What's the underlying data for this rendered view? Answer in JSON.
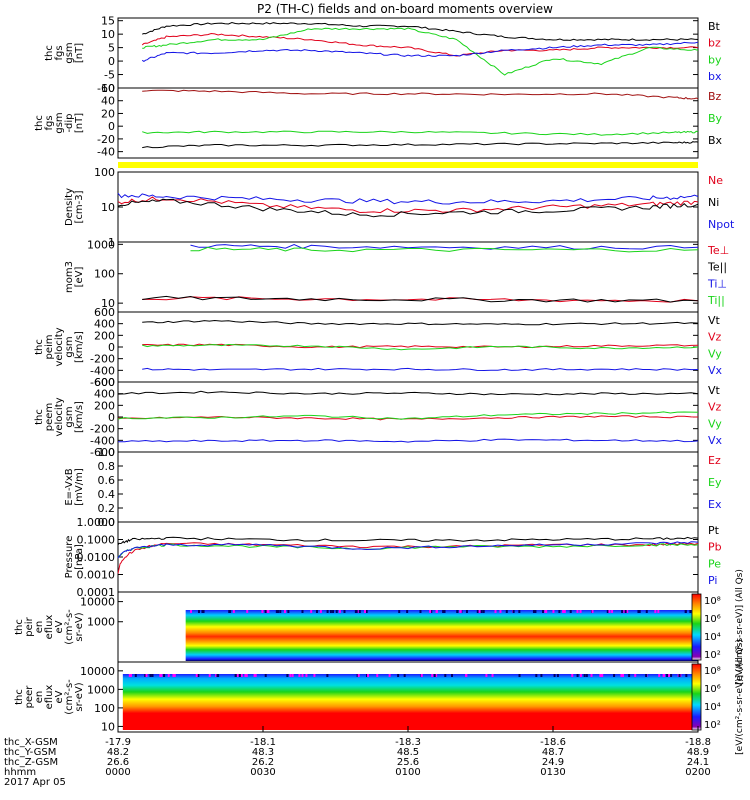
{
  "title": "P2 (TH-C) fields and on-board moments overview",
  "colors": {
    "black": "#000000",
    "red": "#e0001a",
    "green": "#19d419",
    "blue": "#1414e6",
    "yellow": "#ffff00",
    "brown": "#a01010"
  },
  "xaxis": {
    "time_ticks": [
      "0000",
      "0030",
      "0100",
      "0130",
      "0200"
    ],
    "time_values_min": [
      0,
      30,
      60,
      90,
      120
    ],
    "time_range_min": [
      0,
      120
    ],
    "row_labels": [
      "thc_X-GSM",
      "thc_Y-GSM",
      "thc_Z-GSM",
      "hhmm",
      "2017 Apr 05"
    ],
    "rows": [
      [
        "-17.9",
        "-18.1",
        "-18.3",
        "-18.6",
        "-18.8"
      ],
      [
        "48.2",
        "48.3",
        "48.5",
        "48.7",
        "48.9"
      ],
      [
        "26.6",
        "26.2",
        "25.6",
        "24.9",
        "24.1"
      ]
    ]
  },
  "panels": [
    {
      "ylabel": [
        "thc",
        "fgs",
        "gsm",
        "[nT]"
      ],
      "ticks": [
        "15",
        "10",
        "5",
        "0",
        "-5",
        "-10"
      ],
      "tick_values": [
        15,
        10,
        5,
        0,
        -5,
        -10
      ],
      "legend": [
        {
          "text": "Bt",
          "color": "#000000"
        },
        {
          "text": "bz",
          "color": "#e0001a"
        },
        {
          "text": "by",
          "color": "#19d419"
        },
        {
          "text": "bx",
          "color": "#1414e6"
        }
      ]
    },
    {
      "ylabel": [
        "thc",
        "fgs",
        "gsm",
        "-dip",
        "[nT]"
      ],
      "ticks": [
        "60",
        "40",
        "20",
        "0",
        "-20",
        "-40"
      ],
      "tick_values": [
        60,
        40,
        20,
        0,
        -20,
        -40
      ],
      "legend": [
        {
          "text": "Bz",
          "color": "#a01010"
        },
        {
          "text": "By",
          "color": "#19d419"
        },
        {
          "text": "Bx",
          "color": "#000000"
        }
      ]
    },
    {
      "ylabel": [
        "Density",
        "[cm-3]"
      ],
      "ticks": [
        "100",
        "10",
        "1"
      ],
      "tick_values": [
        100,
        10,
        1
      ],
      "legend": [
        {
          "text": "Ne",
          "color": "#e0001a"
        },
        {
          "text": "Ni",
          "color": "#000000"
        },
        {
          "text": "Npot",
          "color": "#1414e6"
        }
      ]
    },
    {
      "ylabel": [
        "mom3",
        "[eV]"
      ],
      "ticks": [
        "1000",
        "100",
        "10"
      ],
      "tick_values": [
        1000,
        100,
        10
      ],
      "legend": [
        {
          "text": "Te⊥",
          "color": "#e0001a"
        },
        {
          "text": "Te||",
          "color": "#000000"
        },
        {
          "text": "Ti⊥",
          "color": "#1414e6"
        },
        {
          "text": "Ti||",
          "color": "#19d419"
        }
      ]
    },
    {
      "ylabel": [
        "thc",
        "peim",
        "velocity",
        "gsm",
        "[km/s]"
      ],
      "ticks": [
        "600",
        "400",
        "200",
        "0",
        "-200",
        "-400",
        "-600"
      ],
      "tick_values": [
        600,
        400,
        200,
        0,
        -200,
        -400,
        -600
      ],
      "legend": [
        {
          "text": "Vt",
          "color": "#000000"
        },
        {
          "text": "Vz",
          "color": "#e0001a"
        },
        {
          "text": "Vy",
          "color": "#19d419"
        },
        {
          "text": "Vx",
          "color": "#1414e6"
        }
      ]
    },
    {
      "ylabel": [
        "thc",
        "peem",
        "velocity",
        "gsm",
        "[km/s]"
      ],
      "ticks": [
        "600",
        "400",
        "200",
        "0",
        "-200",
        "-400",
        "-600"
      ],
      "tick_values": [
        600,
        400,
        200,
        0,
        -200,
        -400,
        -600
      ],
      "legend": [
        {
          "text": "Vt",
          "color": "#000000"
        },
        {
          "text": "Vz",
          "color": "#e0001a"
        },
        {
          "text": "Vy",
          "color": "#19d419"
        },
        {
          "text": "Vx",
          "color": "#1414e6"
        }
      ]
    },
    {
      "ylabel": [
        "E=-VxB",
        "[mV/m]"
      ],
      "ticks": [
        "1.0",
        "0.8",
        "0.6",
        "0.4",
        "0.2",
        "0.0"
      ],
      "tick_values": [
        1.0,
        0.8,
        0.6,
        0.4,
        0.2,
        0.0
      ],
      "legend": [
        {
          "text": "Ez",
          "color": "#e0001a"
        },
        {
          "text": "Ey",
          "color": "#19d419"
        },
        {
          "text": "Ex",
          "color": "#1414e6"
        }
      ]
    },
    {
      "ylabel": [
        "Pressure",
        "[nPa]"
      ],
      "ticks": [
        "1.0000",
        "0.1000",
        "0.0100",
        "0.0010",
        "0.0001"
      ],
      "tick_values": [
        1.0,
        0.1,
        0.01,
        0.001,
        0.0001
      ],
      "legend": [
        {
          "text": "Pt",
          "color": "#000000"
        },
        {
          "text": "Pb",
          "color": "#e0001a"
        },
        {
          "text": "Pe",
          "color": "#19d419"
        },
        {
          "text": "Pi",
          "color": "#1414e6"
        }
      ]
    },
    {
      "ylabel": [
        "thc",
        "peir",
        "en",
        "eflux",
        "eV",
        "(cm²-s-",
        "sr-eV)"
      ],
      "ticks": [
        "10000",
        "1000"
      ],
      "tick_values": [
        10000,
        1000
      ],
      "colorbar": {
        "ticks": [
          "10⁸",
          "10⁶",
          "10⁴",
          "10²"
        ],
        "label": "[eV/(cm²-s-sr-eV)] (All Qs)"
      }
    },
    {
      "ylabel": [
        "thc",
        "peer",
        "en",
        "eflux",
        "eV",
        "(cm²-s-",
        "sr-eV)"
      ],
      "ticks": [
        "10000",
        "1000",
        "100",
        "10"
      ],
      "tick_values": [
        10000,
        1000,
        100,
        10
      ],
      "colorbar": {
        "ticks": [
          "10⁸",
          "10⁶",
          "10⁴",
          "10²"
        ],
        "label": "[eV/(cm²-s-sr-eV)] (All Qs)"
      }
    }
  ],
  "chart_data": [
    {
      "type": "line",
      "title": "P2 (TH-C) fields and on-board moments overview",
      "x_unit": "minutes since 0000 UT",
      "ylim": [
        -10,
        16
      ],
      "series": [
        {
          "name": "Bt",
          "x": [
            5,
            10,
            20,
            30,
            40,
            50,
            60,
            70,
            80,
            90,
            100,
            110,
            120
          ],
          "values": [
            10,
            13,
            14,
            14,
            14,
            13,
            13,
            11,
            9,
            8,
            8,
            8,
            8
          ]
        },
        {
          "name": "bz",
          "x": [
            5,
            10,
            20,
            30,
            40,
            50,
            60,
            70,
            80,
            90,
            100,
            110,
            120
          ],
          "values": [
            6,
            9,
            10,
            9,
            8,
            6,
            5,
            2,
            4,
            4,
            5,
            5,
            5
          ]
        },
        {
          "name": "by",
          "x": [
            5,
            10,
            20,
            30,
            40,
            50,
            60,
            70,
            80,
            90,
            100,
            110,
            120
          ],
          "values": [
            5,
            6,
            8,
            8,
            12,
            12,
            12,
            8,
            -5,
            1,
            -1,
            5,
            4
          ]
        },
        {
          "name": "bx",
          "x": [
            5,
            10,
            20,
            30,
            40,
            50,
            60,
            70,
            80,
            90,
            100,
            110,
            120
          ],
          "values": [
            0,
            3,
            3,
            4,
            4,
            3,
            2,
            2,
            4,
            5,
            6,
            6,
            7
          ]
        }
      ]
    },
    {
      "type": "line",
      "ylim": [
        -50,
        60
      ],
      "series": [
        {
          "name": "Bz",
          "x": [
            5,
            20,
            40,
            60,
            80,
            100,
            115,
            120
          ],
          "values": [
            56,
            55,
            51,
            51,
            50,
            51,
            45,
            43
          ]
        },
        {
          "name": "By",
          "x": [
            5,
            20,
            40,
            60,
            80,
            100,
            115,
            120
          ],
          "values": [
            -10,
            -9,
            -9,
            -9,
            -11,
            -13,
            -10,
            -9
          ]
        },
        {
          "name": "Bx",
          "x": [
            5,
            20,
            40,
            60,
            80,
            100,
            115,
            120
          ],
          "values": [
            -33,
            -30,
            -30,
            -29,
            -28,
            -27,
            -26,
            -25
          ]
        }
      ]
    },
    {
      "type": "line",
      "yscale": "log",
      "ylim": [
        1,
        100
      ],
      "series": [
        {
          "name": "Ne",
          "x": [
            0,
            10,
            30,
            50,
            70,
            90,
            110,
            120
          ],
          "values": [
            14,
            18,
            11,
            8,
            8,
            10,
            12,
            14
          ]
        },
        {
          "name": "Ni",
          "x": [
            0,
            10,
            30,
            50,
            70,
            90,
            110,
            120
          ],
          "values": [
            12,
            15,
            9,
            6,
            7,
            8,
            10,
            12
          ]
        },
        {
          "name": "Npot",
          "x": [
            0,
            10,
            30,
            50,
            70,
            90,
            110,
            120
          ],
          "values": [
            22,
            20,
            17,
            15,
            14,
            15,
            18,
            20
          ]
        }
      ]
    },
    {
      "type": "line",
      "yscale": "log",
      "ylim": [
        5,
        1200
      ],
      "series": [
        {
          "name": "Te⊥",
          "x": [
            5,
            40,
            80,
            120
          ],
          "values": [
            15,
            14,
            13,
            12
          ]
        },
        {
          "name": "Te||",
          "x": [
            5,
            40,
            80,
            120
          ],
          "values": [
            15,
            14,
            13,
            12
          ]
        },
        {
          "name": "Ti⊥",
          "x": [
            15,
            40,
            80,
            120
          ],
          "values": [
            900,
            850,
            800,
            800
          ]
        },
        {
          "name": "Ti||",
          "x": [
            15,
            40,
            80,
            120
          ],
          "values": [
            700,
            650,
            650,
            650
          ]
        }
      ]
    },
    {
      "type": "line",
      "ylim": [
        -600,
        600
      ],
      "series": [
        {
          "name": "Vt",
          "x": [
            5,
            20,
            40,
            60,
            80,
            100,
            120
          ],
          "values": [
            420,
            450,
            400,
            400,
            390,
            400,
            410
          ]
        },
        {
          "name": "Vz",
          "x": [
            5,
            20,
            40,
            60,
            80,
            100,
            120
          ],
          "values": [
            30,
            40,
            0,
            10,
            0,
            20,
            30
          ]
        },
        {
          "name": "Vy",
          "x": [
            5,
            20,
            40,
            60,
            80,
            100,
            120
          ],
          "values": [
            20,
            30,
            20,
            -40,
            10,
            -20,
            0
          ]
        },
        {
          "name": "Vx",
          "x": [
            5,
            20,
            40,
            60,
            80,
            100,
            120
          ],
          "values": [
            -380,
            -390,
            -380,
            -380,
            -390,
            -380,
            -385
          ]
        }
      ]
    },
    {
      "type": "line",
      "ylim": [
        -600,
        600
      ],
      "series": [
        {
          "name": "Vt",
          "x": [
            0,
            20,
            40,
            60,
            80,
            100,
            120
          ],
          "values": [
            400,
            430,
            400,
            410,
            390,
            400,
            400
          ]
        },
        {
          "name": "Vz",
          "x": [
            0,
            20,
            40,
            60,
            80,
            100,
            120
          ],
          "values": [
            -30,
            0,
            -20,
            -40,
            -10,
            10,
            0
          ]
        },
        {
          "name": "Vy",
          "x": [
            0,
            20,
            40,
            60,
            80,
            100,
            120
          ],
          "values": [
            -20,
            -10,
            20,
            -30,
            40,
            60,
            80
          ]
        },
        {
          "name": "Vx",
          "x": [
            0,
            20,
            40,
            60,
            80,
            100,
            120
          ],
          "values": [
            -420,
            -410,
            -400,
            -420,
            -390,
            -400,
            -410
          ]
        }
      ]
    },
    {
      "type": "line",
      "ylim": [
        0,
        1
      ],
      "series": []
    },
    {
      "type": "line",
      "yscale": "log",
      "ylim": [
        0.0001,
        1
      ],
      "series": [
        {
          "name": "Pt",
          "x": [
            0,
            3,
            10,
            30,
            50,
            70,
            90,
            110,
            120
          ],
          "values": [
            0.05,
            0.1,
            0.12,
            0.1,
            0.09,
            0.09,
            0.1,
            0.11,
            0.12
          ]
        },
        {
          "name": "Pb",
          "x": [
            0,
            3,
            10,
            30,
            50,
            70,
            90,
            110,
            120
          ],
          "values": [
            0.001,
            0.02,
            0.06,
            0.05,
            0.04,
            0.04,
            0.05,
            0.05,
            0.06
          ]
        },
        {
          "name": "Pe",
          "x": [
            0,
            3,
            10,
            30,
            50,
            70,
            90,
            110,
            120
          ],
          "values": [
            0.01,
            0.03,
            0.05,
            0.04,
            0.03,
            0.04,
            0.04,
            0.05,
            0.05
          ]
        },
        {
          "name": "Pi",
          "x": [
            0,
            3,
            10,
            30,
            50,
            70,
            90,
            110,
            120
          ],
          "values": [
            0.01,
            0.03,
            0.05,
            0.05,
            0.03,
            0.04,
            0.05,
            0.06,
            0.07
          ]
        }
      ]
    },
    {
      "type": "heatmap",
      "yscale": "log",
      "ylim": [
        10,
        30000
      ],
      "x_coverage_min": [
        14,
        120
      ],
      "note_bands": "peak energy flux near 600-1000 eV"
    },
    {
      "type": "heatmap",
      "yscale": "log",
      "ylim": [
        5,
        30000
      ],
      "x_coverage_min": [
        1,
        120
      ],
      "note_bands": "highest energy flux below ~100 eV"
    }
  ]
}
